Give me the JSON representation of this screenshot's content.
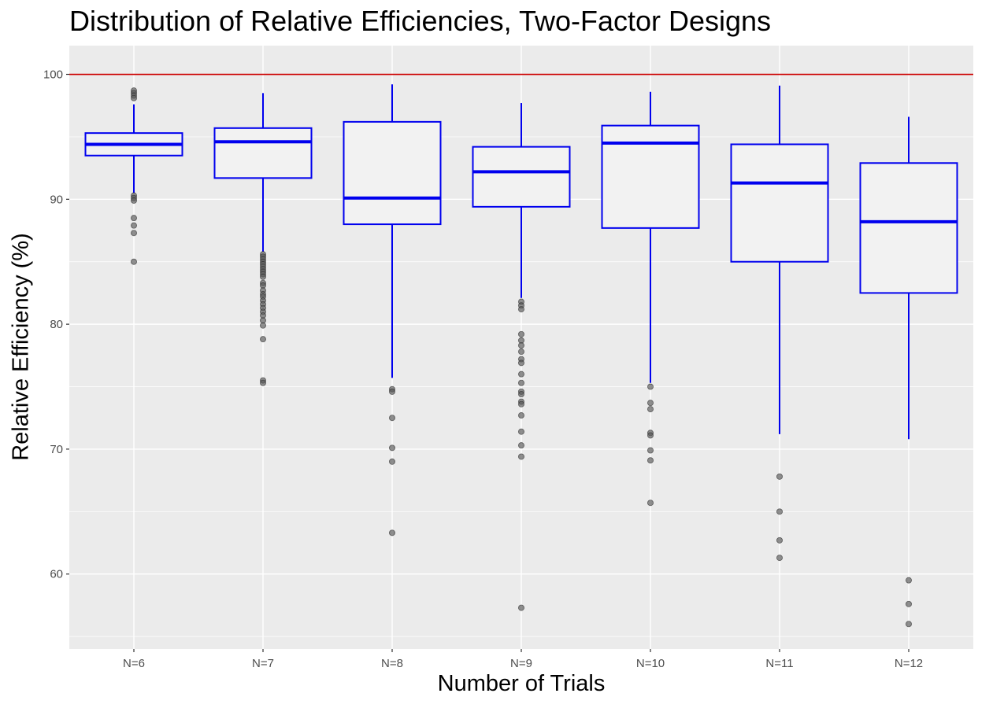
{
  "chart_data": {
    "type": "box",
    "title": "Distribution of Relative Efficiencies, Two-Factor Designs",
    "xlabel": "Number of Trials",
    "ylabel": "Relative Efficiency (%)",
    "ylim": [
      54,
      102.3
    ],
    "yticks": [
      60,
      70,
      80,
      90,
      100
    ],
    "grid": true,
    "reference_line": {
      "y": 100,
      "color": "#cc0000"
    },
    "box_color": "#0000ee",
    "outlier_color": "#555555",
    "panel_color": "#ebebeb",
    "categories": [
      "N=6",
      "N=7",
      "N=8",
      "N=9",
      "N=10",
      "N=11",
      "N=12"
    ],
    "boxes": [
      {
        "category": "N=6",
        "whisker_low": 90.5,
        "q1": 93.5,
        "median": 94.4,
        "q3": 95.3,
        "whisker_high": 97.6,
        "outliers": [
          98.7,
          98.5,
          98.3,
          98.1,
          90.3,
          90.1,
          89.9,
          88.5,
          87.9,
          87.3,
          85.0
        ]
      },
      {
        "category": "N=7",
        "whisker_low": 85.8,
        "q1": 91.7,
        "median": 94.6,
        "q3": 95.7,
        "whisker_high": 98.5,
        "outliers": [
          85.6,
          85.4,
          85.2,
          85.0,
          84.8,
          84.6,
          84.4,
          84.2,
          84.0,
          83.8,
          83.3,
          83.1,
          82.7,
          82.4,
          82.2,
          81.9,
          81.6,
          81.3,
          81.0,
          80.7,
          80.3,
          79.9,
          78.8,
          75.5,
          75.3
        ]
      },
      {
        "category": "N=8",
        "whisker_low": 75.7,
        "q1": 88.0,
        "median": 90.1,
        "q3": 96.2,
        "whisker_high": 99.2,
        "outliers": [
          74.8,
          74.6,
          72.5,
          70.1,
          69.0,
          63.3
        ]
      },
      {
        "category": "N=9",
        "whisker_low": 82.1,
        "q1": 89.4,
        "median": 92.2,
        "q3": 94.2,
        "whisker_high": 97.7,
        "outliers": [
          81.8,
          81.5,
          81.2,
          79.2,
          78.7,
          78.3,
          77.8,
          77.2,
          76.9,
          76.0,
          75.3,
          74.6,
          74.4,
          73.8,
          73.6,
          72.7,
          71.4,
          70.3,
          69.4,
          57.3
        ]
      },
      {
        "category": "N=10",
        "whisker_low": 75.3,
        "q1": 87.7,
        "median": 94.5,
        "q3": 95.9,
        "whisker_high": 98.6,
        "outliers": [
          75.0,
          73.7,
          73.2,
          71.3,
          71.1,
          69.9,
          69.1,
          65.7
        ]
      },
      {
        "category": "N=11",
        "whisker_low": 71.2,
        "q1": 85.0,
        "median": 91.3,
        "q3": 94.4,
        "whisker_high": 99.1,
        "outliers": [
          67.8,
          65.0,
          62.7,
          61.3
        ]
      },
      {
        "category": "N=12",
        "whisker_low": 70.8,
        "q1": 82.5,
        "median": 88.2,
        "q3": 92.9,
        "whisker_high": 96.6,
        "outliers": [
          59.5,
          57.6,
          56.0
        ]
      }
    ]
  }
}
